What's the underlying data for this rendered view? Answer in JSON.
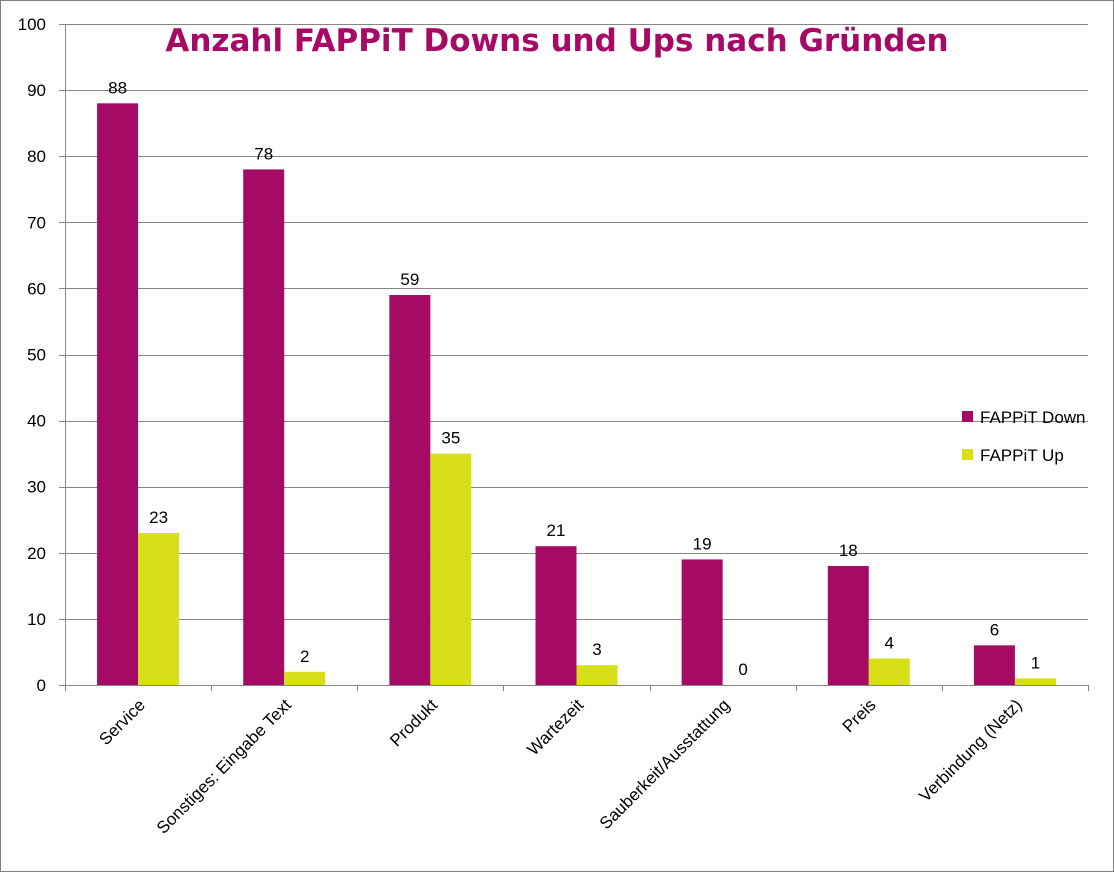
{
  "chart_data": {
    "type": "bar",
    "title": "Anzahl FAPPiT Downs und Ups nach Gründen",
    "xlabel": "",
    "ylabel": "",
    "ylim": [
      0,
      100
    ],
    "yticks": [
      0,
      10,
      20,
      30,
      40,
      50,
      60,
      70,
      80,
      90,
      100
    ],
    "grid": true,
    "legend_position": "right",
    "categories": [
      "Service",
      "Sonstiges: Eingabe Text",
      "Produkt",
      "Wartezeit",
      "Sauberkeit/Ausstattung",
      "Preis",
      "Verbindung (Netz)"
    ],
    "series": [
      {
        "name": "FAPPiT Down",
        "color": "#a50a65",
        "values": [
          88,
          78,
          59,
          21,
          19,
          18,
          6
        ]
      },
      {
        "name": "FAPPiT Up",
        "color": "#d6df17",
        "values": [
          23,
          2,
          35,
          3,
          0,
          4,
          1
        ]
      }
    ],
    "title_color": "#a50a65"
  }
}
